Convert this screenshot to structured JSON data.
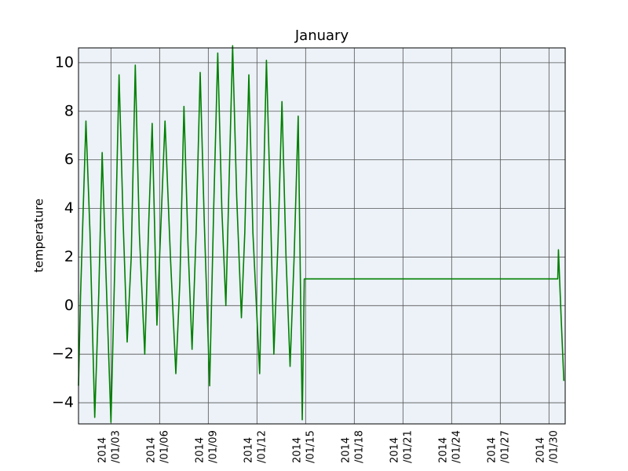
{
  "chart_data": {
    "type": "line",
    "title": "January",
    "y_label": "temperature",
    "color": "#008000",
    "grid": true,
    "x": [
      "2014-01-01T00:00",
      "2014-01-01T03:00",
      "2014-01-01T11:00",
      "2014-01-01T17:00",
      "2014-01-02T00:00",
      "2014-01-02T06:00",
      "2014-01-02T11:00",
      "2014-01-02T17:00",
      "2014-01-03T00:00",
      "2014-01-03T06:00",
      "2014-01-03T12:00",
      "2014-01-03T18:00",
      "2014-01-04T00:00",
      "2014-01-04T06:00",
      "2014-01-04T12:00",
      "2014-01-04T18:00",
      "2014-01-05T02:00",
      "2014-01-05T08:00",
      "2014-01-05T13:00",
      "2014-01-05T20:00",
      "2014-01-06T08:00",
      "2014-01-06T16:00",
      "2014-01-07T00:00",
      "2014-01-07T06:00",
      "2014-01-07T12:00",
      "2014-01-07T18:00",
      "2014-01-08T00:00",
      "2014-01-08T06:00",
      "2014-01-08T12:00",
      "2014-01-08T18:00",
      "2014-01-09T02:00",
      "2014-01-09T08:00",
      "2014-01-09T14:00",
      "2014-01-09T20:00",
      "2014-01-10T02:00",
      "2014-01-10T12:00",
      "2014-01-10T18:00",
      "2014-01-11T01:00",
      "2014-01-11T06:00",
      "2014-01-11T12:00",
      "2014-01-11T18:00",
      "2014-01-12T04:00",
      "2014-01-12T09:00",
      "2014-01-12T14:00",
      "2014-01-12T20:00",
      "2014-01-13T01:00",
      "2014-01-13T07:00",
      "2014-01-13T13:00",
      "2014-01-13T19:00",
      "2014-01-14T01:00",
      "2014-01-14T07:00",
      "2014-01-14T13:00",
      "2014-01-14T19:00",
      "2014-01-14T22:00",
      "2014-01-30T13:00",
      "2014-01-30T14:00",
      "2014-01-30T18:00",
      "2014-01-30T22:00"
    ],
    "values": [
      -3.3,
      0.4,
      7.6,
      3.0,
      -4.6,
      0.5,
      6.3,
      1.0,
      -4.8,
      2.0,
      9.5,
      3.5,
      -1.5,
      2.0,
      9.9,
      3.0,
      -2.0,
      3.5,
      7.5,
      -0.8,
      7.6,
      2.0,
      -2.8,
      1.0,
      8.2,
      2.5,
      -1.8,
      3.0,
      9.6,
      3.5,
      -3.3,
      4.0,
      10.4,
      4.0,
      0.0,
      10.7,
      4.5,
      -0.5,
      3.0,
      9.5,
      3.0,
      -2.8,
      4.0,
      10.1,
      4.0,
      -2.0,
      2.5,
      8.4,
      2.0,
      -2.5,
      2.0,
      7.8,
      -4.7,
      1.1,
      1.1,
      2.3,
      -0.5,
      -3.1
    ],
    "xlim": [
      "2014-01-01T00:00",
      "2014-01-31T00:00"
    ],
    "xticks": [
      {
        "value": "2014-01-03T00:00",
        "label": "2014/01/03"
      },
      {
        "value": "2014-01-06T00:00",
        "label": "2014/01/06"
      },
      {
        "value": "2014-01-09T00:00",
        "label": "2014/01/09"
      },
      {
        "value": "2014-01-12T00:00",
        "label": "2014/01/12"
      },
      {
        "value": "2014-01-15T00:00",
        "label": "2014/01/15"
      },
      {
        "value": "2014-01-18T00:00",
        "label": "2014/01/18"
      },
      {
        "value": "2014-01-21T00:00",
        "label": "2014/01/21"
      },
      {
        "value": "2014-01-24T00:00",
        "label": "2014/01/24"
      },
      {
        "value": "2014-01-27T00:00",
        "label": "2014/01/27"
      },
      {
        "value": "2014-01-30T00:00",
        "label": "2014/01/30"
      }
    ],
    "ylim": [
      -4.87,
      10.61
    ],
    "yticks": [
      {
        "value": -4,
        "label": "−4"
      },
      {
        "value": -2,
        "label": "−2"
      },
      0,
      2,
      4,
      6,
      8,
      10
    ]
  }
}
